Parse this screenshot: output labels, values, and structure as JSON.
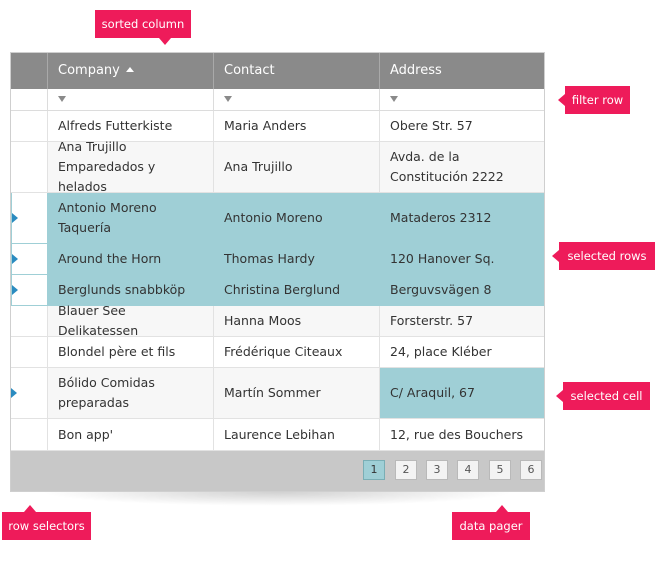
{
  "grid": {
    "columns": [
      {
        "label": "Company",
        "sorted": "ascending"
      },
      {
        "label": "Contact"
      },
      {
        "label": "Address"
      }
    ],
    "rows": [
      {
        "company": "Alfreds Futterkiste",
        "contact": "Maria Anders",
        "address": "Obere Str. 57",
        "selected": false
      },
      {
        "company": "Ana Trujillo Emparedados y helados",
        "contact": "Ana Trujillo",
        "address": "Avda. de la Constitución 2222",
        "selected": false
      },
      {
        "company": "Antonio Moreno Taquería",
        "contact": "Antonio Moreno",
        "address": "Mataderos 2312",
        "selected": true
      },
      {
        "company": "Around the Horn",
        "contact": "Thomas Hardy",
        "address": "120 Hanover Sq.",
        "selected": true
      },
      {
        "company": "Berglunds snabbköp",
        "contact": "Christina Berglund",
        "address": "Berguvsvägen 8",
        "selected": true
      },
      {
        "company": "Blauer See Delikatessen",
        "contact": "Hanna Moos",
        "address": "Forsterstr. 57",
        "selected": false
      },
      {
        "company": "Blondel père et fils",
        "contact": "Frédérique Citeaux",
        "address": "24, place Kléber",
        "selected": false
      },
      {
        "company": "Bólido Comidas preparadas",
        "contact": "Martín Sommer",
        "address": "C/ Araquil, 67",
        "selected": false,
        "selected_cell": "address"
      },
      {
        "company": "Bon app'",
        "contact": "Laurence Lebihan",
        "address": "12, rue des Bouchers",
        "selected": false
      }
    ],
    "pager": {
      "pages": [
        "1",
        "2",
        "3",
        "4",
        "5",
        "6"
      ],
      "current": "1"
    }
  },
  "callouts": {
    "sorted_column": "sorted column",
    "filter_row": "filter row",
    "selected_rows": "selected rows",
    "selected_cell": "selected cell",
    "row_selectors": "row selectors",
    "data_pager": "data pager"
  },
  "colors": {
    "header_bg": "#8a8a8a",
    "selection": "#9fcfd6",
    "callout": "#ee1b5a",
    "row_indicator": "#2a8bc0",
    "pager_bg": "#c8c8c8"
  },
  "icons": {
    "sort": "sort-ascending-icon",
    "filter": "filter-icon",
    "row_indicator": "row-indicator-icon"
  }
}
